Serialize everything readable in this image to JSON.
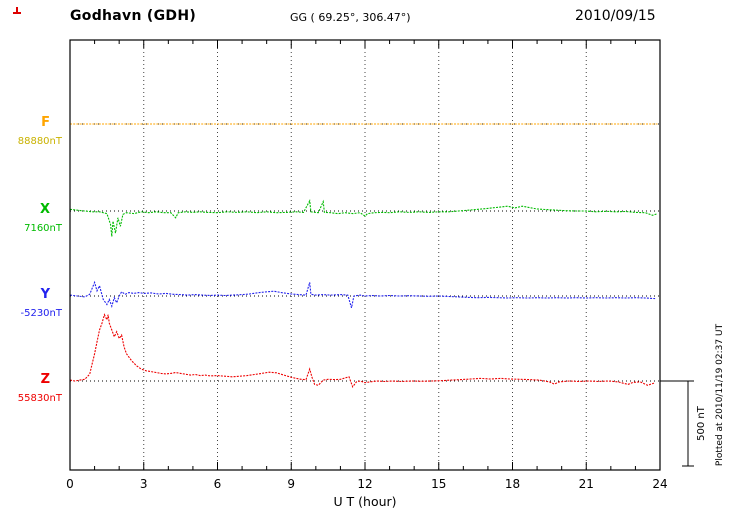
{
  "header": {
    "station": "Godhavn (GDH)",
    "coords": "GG ( 69.25°, 306.47°)",
    "date": "2010/09/15"
  },
  "side": {
    "scale_label": "500 nT",
    "plotted_at": "Plotted at 2010/11/19 02:37 UT"
  },
  "chart_data": {
    "type": "line",
    "title": "Godhavn (GDH) magnetogram",
    "xlabel": "U T (hour)",
    "ylabel": "",
    "x_range": [
      0,
      24
    ],
    "x_major_ticks": [
      0,
      3,
      6,
      9,
      12,
      15,
      18,
      21,
      24
    ],
    "x_minor_step": 1,
    "grid": "dotted-vertical-at-major-ticks",
    "scale_bar_nT": 500,
    "baseline_values_nT": {
      "F": 88880,
      "X": 7160,
      "Y": -5230,
      "Z": 55830
    },
    "series": [
      {
        "name": "F",
        "value": "88880nT",
        "color": "#FFA500",
        "value_color": "#C9B200",
        "points": [
          [
            0,
            0
          ],
          [
            4,
            0
          ],
          [
            8,
            0
          ],
          [
            12,
            0
          ],
          [
            16,
            0
          ],
          [
            20,
            0
          ],
          [
            23.9,
            0
          ]
        ]
      },
      {
        "name": "X",
        "value": "7160nT",
        "color": "#00BB00",
        "value_color": "#00BB00",
        "points": [
          [
            0,
            10
          ],
          [
            0.3,
            5
          ],
          [
            0.6,
            0
          ],
          [
            0.9,
            -5
          ],
          [
            1.2,
            -5
          ],
          [
            1.5,
            -15
          ],
          [
            1.65,
            -80
          ],
          [
            1.7,
            -150
          ],
          [
            1.75,
            -60
          ],
          [
            1.85,
            -130
          ],
          [
            1.95,
            -40
          ],
          [
            2.05,
            -90
          ],
          [
            2.15,
            -20
          ],
          [
            2.3,
            -10
          ],
          [
            2.6,
            -15
          ],
          [
            2.9,
            -5
          ],
          [
            3.2,
            -10
          ],
          [
            3.5,
            -5
          ],
          [
            3.8,
            -10
          ],
          [
            4.1,
            -10
          ],
          [
            4.3,
            -40
          ],
          [
            4.4,
            -10
          ],
          [
            4.7,
            -5
          ],
          [
            5,
            -8
          ],
          [
            5.3,
            -5
          ],
          [
            5.6,
            -8
          ],
          [
            6,
            -10
          ],
          [
            6.4,
            -5
          ],
          [
            6.8,
            -8
          ],
          [
            7.2,
            -5
          ],
          [
            7.6,
            -10
          ],
          [
            8,
            -5
          ],
          [
            8.4,
            -10
          ],
          [
            8.8,
            -8
          ],
          [
            9.2,
            -5
          ],
          [
            9.5,
            -8
          ],
          [
            9.75,
            60
          ],
          [
            9.8,
            -5
          ],
          [
            10.1,
            -10
          ],
          [
            10.3,
            55
          ],
          [
            10.35,
            -8
          ],
          [
            10.6,
            -10
          ],
          [
            10.9,
            -15
          ],
          [
            11.2,
            -10
          ],
          [
            11.5,
            -15
          ],
          [
            11.8,
            -10
          ],
          [
            12,
            -30
          ],
          [
            12.1,
            -15
          ],
          [
            12.4,
            -10
          ],
          [
            12.7,
            -8
          ],
          [
            13,
            -10
          ],
          [
            13.4,
            -5
          ],
          [
            13.8,
            -8
          ],
          [
            14.2,
            -5
          ],
          [
            14.6,
            -8
          ],
          [
            15,
            -5
          ],
          [
            15.4,
            -5
          ],
          [
            15.8,
            0
          ],
          [
            16.2,
            5
          ],
          [
            16.6,
            10
          ],
          [
            17,
            15
          ],
          [
            17.4,
            22
          ],
          [
            17.8,
            28
          ],
          [
            18.1,
            18
          ],
          [
            18.4,
            28
          ],
          [
            18.7,
            20
          ],
          [
            19,
            12
          ],
          [
            19.4,
            8
          ],
          [
            19.8,
            5
          ],
          [
            20.2,
            2
          ],
          [
            20.6,
            0
          ],
          [
            21,
            0
          ],
          [
            21.4,
            -5
          ],
          [
            21.8,
            -2
          ],
          [
            22.2,
            -5
          ],
          [
            22.6,
            -3
          ],
          [
            23,
            -8
          ],
          [
            23.4,
            -10
          ],
          [
            23.7,
            -25
          ],
          [
            23.9,
            -15
          ]
        ]
      },
      {
        "name": "Y",
        "value": "-5230nT",
        "color": "#2222EE",
        "value_color": "#2222EE",
        "points": [
          [
            0,
            5
          ],
          [
            0.3,
            0
          ],
          [
            0.6,
            -5
          ],
          [
            0.8,
            10
          ],
          [
            1.0,
            80
          ],
          [
            1.1,
            30
          ],
          [
            1.2,
            60
          ],
          [
            1.35,
            -20
          ],
          [
            1.5,
            -50
          ],
          [
            1.6,
            -20
          ],
          [
            1.7,
            -60
          ],
          [
            1.8,
            -10
          ],
          [
            1.9,
            -40
          ],
          [
            2.0,
            0
          ],
          [
            2.1,
            25
          ],
          [
            2.25,
            10
          ],
          [
            2.4,
            20
          ],
          [
            2.6,
            15
          ],
          [
            2.8,
            20
          ],
          [
            3.0,
            15
          ],
          [
            3.3,
            18
          ],
          [
            3.6,
            12
          ],
          [
            3.9,
            15
          ],
          [
            4.2,
            10
          ],
          [
            4.5,
            8
          ],
          [
            4.8,
            5
          ],
          [
            5.1,
            8
          ],
          [
            5.4,
            5
          ],
          [
            5.7,
            3
          ],
          [
            6,
            5
          ],
          [
            6.3,
            3
          ],
          [
            6.6,
            5
          ],
          [
            7,
            8
          ],
          [
            7.3,
            12
          ],
          [
            7.6,
            18
          ],
          [
            8,
            25
          ],
          [
            8.3,
            28
          ],
          [
            8.6,
            20
          ],
          [
            9,
            12
          ],
          [
            9.3,
            8
          ],
          [
            9.6,
            5
          ],
          [
            9.75,
            80
          ],
          [
            9.8,
            10
          ],
          [
            10,
            5
          ],
          [
            10.3,
            8
          ],
          [
            10.6,
            5
          ],
          [
            11,
            8
          ],
          [
            11.3,
            5
          ],
          [
            11.45,
            -70
          ],
          [
            11.55,
            0
          ],
          [
            11.8,
            5
          ],
          [
            12,
            0
          ],
          [
            12.3,
            3
          ],
          [
            12.6,
            0
          ],
          [
            13,
            3
          ],
          [
            13.4,
            0
          ],
          [
            13.8,
            2
          ],
          [
            14.2,
            0
          ],
          [
            14.6,
            -2
          ],
          [
            15,
            0
          ],
          [
            15.4,
            -3
          ],
          [
            15.8,
            -5
          ],
          [
            16.2,
            -8
          ],
          [
            16.6,
            -10
          ],
          [
            17,
            -8
          ],
          [
            17.4,
            -10
          ],
          [
            17.8,
            -12
          ],
          [
            18.2,
            -10
          ],
          [
            18.6,
            -12
          ],
          [
            19,
            -10
          ],
          [
            19.4,
            -12
          ],
          [
            19.8,
            -10
          ],
          [
            20.2,
            -12
          ],
          [
            20.6,
            -10
          ],
          [
            21,
            -12
          ],
          [
            21.4,
            -10
          ],
          [
            21.8,
            -12
          ],
          [
            22.2,
            -10
          ],
          [
            22.6,
            -12
          ],
          [
            23,
            -10
          ],
          [
            23.4,
            -12
          ],
          [
            23.8,
            -15
          ]
        ]
      },
      {
        "name": "Z",
        "value": "55830nT",
        "color": "#EE0000",
        "value_color": "#EE0000",
        "points": [
          [
            0,
            5
          ],
          [
            0.2,
            0
          ],
          [
            0.4,
            5
          ],
          [
            0.6,
            10
          ],
          [
            0.8,
            40
          ],
          [
            0.9,
            100
          ],
          [
            1.0,
            160
          ],
          [
            1.1,
            230
          ],
          [
            1.2,
            300
          ],
          [
            1.3,
            340
          ],
          [
            1.4,
            390
          ],
          [
            1.5,
            360
          ],
          [
            1.55,
            390
          ],
          [
            1.6,
            340
          ],
          [
            1.7,
            300
          ],
          [
            1.8,
            260
          ],
          [
            1.9,
            290
          ],
          [
            2.0,
            250
          ],
          [
            2.1,
            270
          ],
          [
            2.2,
            200
          ],
          [
            2.3,
            160
          ],
          [
            2.4,
            140
          ],
          [
            2.5,
            120
          ],
          [
            2.7,
            90
          ],
          [
            2.9,
            70
          ],
          [
            3.1,
            60
          ],
          [
            3.3,
            55
          ],
          [
            3.5,
            50
          ],
          [
            3.7,
            45
          ],
          [
            3.9,
            42
          ],
          [
            4.1,
            45
          ],
          [
            4.3,
            50
          ],
          [
            4.5,
            45
          ],
          [
            4.7,
            40
          ],
          [
            4.9,
            35
          ],
          [
            5.1,
            38
          ],
          [
            5.3,
            32
          ],
          [
            5.5,
            35
          ],
          [
            5.7,
            30
          ],
          [
            6,
            32
          ],
          [
            6.3,
            28
          ],
          [
            6.6,
            25
          ],
          [
            6.9,
            28
          ],
          [
            7.2,
            32
          ],
          [
            7.5,
            38
          ],
          [
            7.8,
            45
          ],
          [
            8.1,
            52
          ],
          [
            8.4,
            48
          ],
          [
            8.7,
            35
          ],
          [
            9,
            22
          ],
          [
            9.2,
            15
          ],
          [
            9.4,
            10
          ],
          [
            9.6,
            8
          ],
          [
            9.75,
            70
          ],
          [
            9.85,
            20
          ],
          [
            9.95,
            -20
          ],
          [
            10.1,
            -25
          ],
          [
            10.3,
            5
          ],
          [
            10.5,
            10
          ],
          [
            10.8,
            8
          ],
          [
            11,
            10
          ],
          [
            11.2,
            18
          ],
          [
            11.35,
            25
          ],
          [
            11.5,
            -35
          ],
          [
            11.65,
            -5
          ],
          [
            11.8,
            0
          ],
          [
            12,
            -10
          ],
          [
            12.2,
            -5
          ],
          [
            12.5,
            0
          ],
          [
            12.8,
            -3
          ],
          [
            13.1,
            0
          ],
          [
            13.5,
            -3
          ],
          [
            13.9,
            0
          ],
          [
            14.3,
            -2
          ],
          [
            14.7,
            0
          ],
          [
            15.1,
            2
          ],
          [
            15.5,
            5
          ],
          [
            15.9,
            8
          ],
          [
            16.3,
            12
          ],
          [
            16.7,
            15
          ],
          [
            17.1,
            12
          ],
          [
            17.5,
            15
          ],
          [
            17.9,
            12
          ],
          [
            18.3,
            10
          ],
          [
            18.7,
            8
          ],
          [
            19.1,
            5
          ],
          [
            19.5,
            -5
          ],
          [
            19.7,
            -18
          ],
          [
            19.9,
            -5
          ],
          [
            20.3,
            0
          ],
          [
            20.7,
            -3
          ],
          [
            21.1,
            0
          ],
          [
            21.5,
            -3
          ],
          [
            21.9,
            0
          ],
          [
            22.3,
            -5
          ],
          [
            22.7,
            -20
          ],
          [
            22.9,
            -8
          ],
          [
            23.2,
            -5
          ],
          [
            23.5,
            -25
          ],
          [
            23.8,
            -10
          ]
        ]
      }
    ]
  },
  "misc": {
    "corner_mark_color": "#DD0000"
  }
}
